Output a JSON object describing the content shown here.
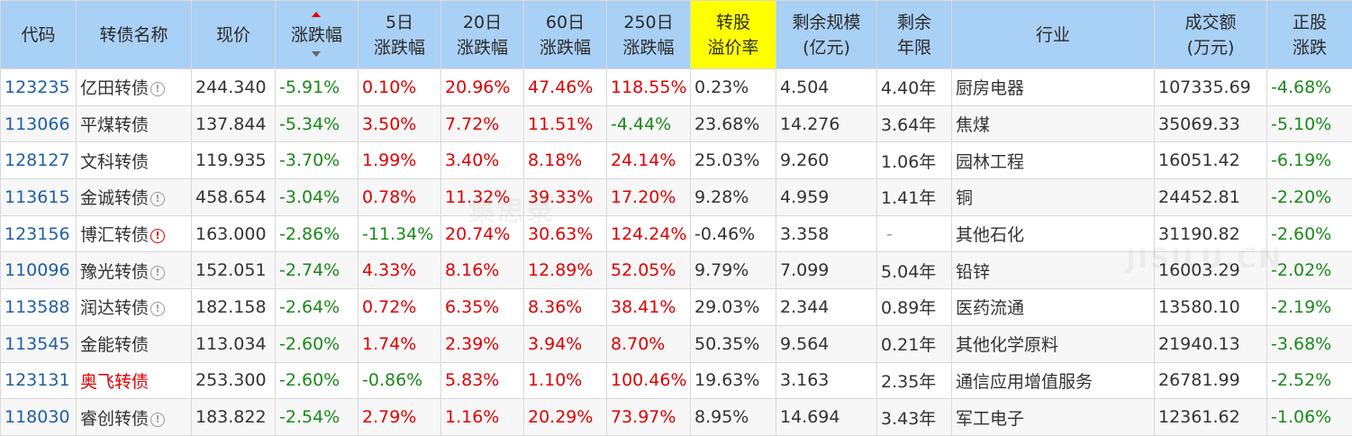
{
  "columns": [
    {
      "key": "code",
      "label_lines": [
        "代码"
      ]
    },
    {
      "key": "name",
      "label_lines": [
        "转债名称"
      ]
    },
    {
      "key": "price",
      "label_lines": [
        "现价"
      ]
    },
    {
      "key": "change",
      "label_lines": [
        "涨跌幅"
      ],
      "sortable": true
    },
    {
      "key": "d5",
      "label_lines": [
        "5日",
        "涨跌幅"
      ]
    },
    {
      "key": "d20",
      "label_lines": [
        "20日",
        "涨跌幅"
      ]
    },
    {
      "key": "d60",
      "label_lines": [
        "60日",
        "涨跌幅"
      ]
    },
    {
      "key": "d250",
      "label_lines": [
        "250日",
        "涨跌幅"
      ]
    },
    {
      "key": "premium",
      "label_lines": [
        "转股",
        "溢价率"
      ],
      "highlight": true
    },
    {
      "key": "scale",
      "label_lines": [
        "剩余规模",
        "(亿元)"
      ]
    },
    {
      "key": "years",
      "label_lines": [
        "剩余",
        "年限"
      ]
    },
    {
      "key": "industry",
      "label_lines": [
        "行业"
      ]
    },
    {
      "key": "volume",
      "label_lines": [
        "成交额",
        "(万元)"
      ]
    },
    {
      "key": "stock",
      "label_lines": [
        "正股",
        "涨跌"
      ]
    }
  ],
  "rows": [
    {
      "code": "123235",
      "name": "亿田转债",
      "icon": "info",
      "price": "244.340",
      "change": "-5.91%",
      "d5": "0.10%",
      "d20": "20.96%",
      "d60": "47.46%",
      "d250": "118.55%",
      "premium": "0.23%",
      "scale": "4.504",
      "years": "4.40年",
      "industry": "厨房电器",
      "volume": "107335.69",
      "stock": "-4.68%"
    },
    {
      "code": "113066",
      "name": "平煤转债",
      "icon": "",
      "price": "137.844",
      "change": "-5.34%",
      "d5": "3.50%",
      "d20": "7.72%",
      "d60": "11.51%",
      "d250": "-4.44%",
      "premium": "23.68%",
      "scale": "14.276",
      "years": "3.64年",
      "industry": "焦煤",
      "volume": "35069.33",
      "stock": "-5.10%"
    },
    {
      "code": "128127",
      "name": "文科转债",
      "icon": "",
      "price": "119.935",
      "change": "-3.70%",
      "d5": "1.99%",
      "d20": "3.40%",
      "d60": "8.18%",
      "d250": "24.14%",
      "premium": "25.03%",
      "scale": "9.260",
      "years": "1.06年",
      "industry": "园林工程",
      "volume": "16051.42",
      "stock": "-6.19%"
    },
    {
      "code": "113615",
      "name": "金诚转债",
      "icon": "info",
      "price": "458.654",
      "change": "-3.04%",
      "d5": "0.78%",
      "d20": "11.32%",
      "d60": "39.33%",
      "d250": "17.20%",
      "premium": "9.28%",
      "scale": "4.959",
      "years": "1.41年",
      "industry": "铜",
      "volume": "24452.81",
      "stock": "-2.20%"
    },
    {
      "code": "123156",
      "name": "博汇转债",
      "icon": "alert",
      "price": "163.000",
      "change": "-2.86%",
      "d5": "-11.34%",
      "d20": "20.74%",
      "d60": "30.63%",
      "d250": "124.24%",
      "premium": "-0.46%",
      "scale": "3.358",
      "years": "-",
      "industry": "其他石化",
      "volume": "31190.82",
      "stock": "-2.60%"
    },
    {
      "code": "110096",
      "name": "豫光转债",
      "icon": "info",
      "price": "152.051",
      "change": "-2.74%",
      "d5": "4.33%",
      "d20": "8.16%",
      "d60": "12.89%",
      "d250": "52.05%",
      "premium": "9.79%",
      "scale": "7.099",
      "years": "5.04年",
      "industry": "铅锌",
      "volume": "16003.29",
      "stock": "-2.02%"
    },
    {
      "code": "113588",
      "name": "润达转债",
      "icon": "info",
      "price": "182.158",
      "change": "-2.64%",
      "d5": "0.72%",
      "d20": "6.35%",
      "d60": "8.36%",
      "d250": "38.41%",
      "premium": "29.03%",
      "scale": "2.344",
      "years": "0.89年",
      "industry": "医药流通",
      "volume": "13580.10",
      "stock": "-2.19%"
    },
    {
      "code": "113545",
      "name": "金能转债",
      "icon": "",
      "price": "113.034",
      "change": "-2.60%",
      "d5": "1.74%",
      "d20": "2.39%",
      "d60": "3.94%",
      "d250": "8.70%",
      "premium": "50.35%",
      "scale": "9.564",
      "years": "0.21年",
      "industry": "其他化学原料",
      "volume": "21940.13",
      "stock": "-3.68%"
    },
    {
      "code": "123131",
      "name": "奥飞转债",
      "icon": "",
      "name_red": true,
      "price": "253.300",
      "change": "-2.60%",
      "d5": "-0.86%",
      "d20": "5.83%",
      "d60": "1.10%",
      "d250": "100.46%",
      "premium": "19.63%",
      "scale": "3.163",
      "years": "2.35年",
      "industry": "通信应用增值服务",
      "volume": "26781.99",
      "stock": "-2.52%"
    },
    {
      "code": "118030",
      "name": "睿创转债",
      "icon": "info",
      "price": "183.822",
      "change": "-2.54%",
      "d5": "2.79%",
      "d20": "1.16%",
      "d60": "20.29%",
      "d250": "73.97%",
      "premium": "8.95%",
      "scale": "14.694",
      "years": "3.43年",
      "industry": "军工电子",
      "volume": "12361.62",
      "stock": "-1.06%"
    }
  ],
  "watermark": {
    "cn": "集思录",
    "en": "JISILU.CN"
  },
  "colors": {
    "header_bg": "#a9d0f5",
    "highlight": "#ffff00",
    "up": "#e00000",
    "down": "#1a8a1a",
    "code": "#1f5fa8"
  }
}
